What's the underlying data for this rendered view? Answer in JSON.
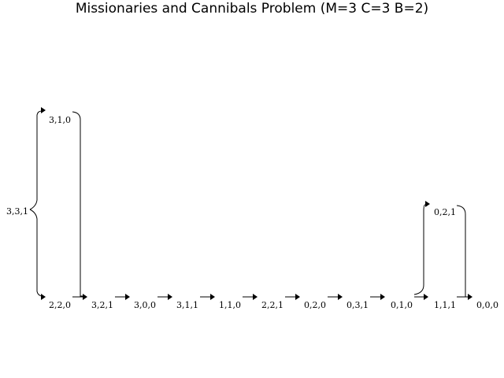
{
  "title": "Missionaries and Cannibals Problem (M=3 C=3 B=2)",
  "nodes": {
    "root": "3,3,1",
    "n311_top": "3,1,0",
    "n220": "2,2,0",
    "n321": "3,2,1",
    "n300": "3,0,0",
    "n311": "3,1,1",
    "n110": "1,1,0",
    "n221": "2,2,1",
    "n020": "0,2,0",
    "n031": "0,3,1",
    "n010": "0,1,0",
    "n021": "0,2,1",
    "n111": "1,1,1",
    "n000": "0,0,0"
  },
  "edges": [
    {
      "from": "3,3,1",
      "to": "3,1,0"
    },
    {
      "from": "3,3,1",
      "to": "2,2,0"
    },
    {
      "from": "3,1,0",
      "to": "3,2,1"
    },
    {
      "from": "2,2,0",
      "to": "3,2,1"
    },
    {
      "from": "3,2,1",
      "to": "3,0,0"
    },
    {
      "from": "3,0,0",
      "to": "3,1,1"
    },
    {
      "from": "3,1,1",
      "to": "1,1,0"
    },
    {
      "from": "1,1,0",
      "to": "2,2,1"
    },
    {
      "from": "2,2,1",
      "to": "0,2,0"
    },
    {
      "from": "0,2,0",
      "to": "0,3,1"
    },
    {
      "from": "0,3,1",
      "to": "0,1,0"
    },
    {
      "from": "0,1,0",
      "to": "0,2,1"
    },
    {
      "from": "0,1,0",
      "to": "1,1,1"
    },
    {
      "from": "0,2,1",
      "to": "0,0,0"
    },
    {
      "from": "1,1,1",
      "to": "0,0,0"
    }
  ]
}
